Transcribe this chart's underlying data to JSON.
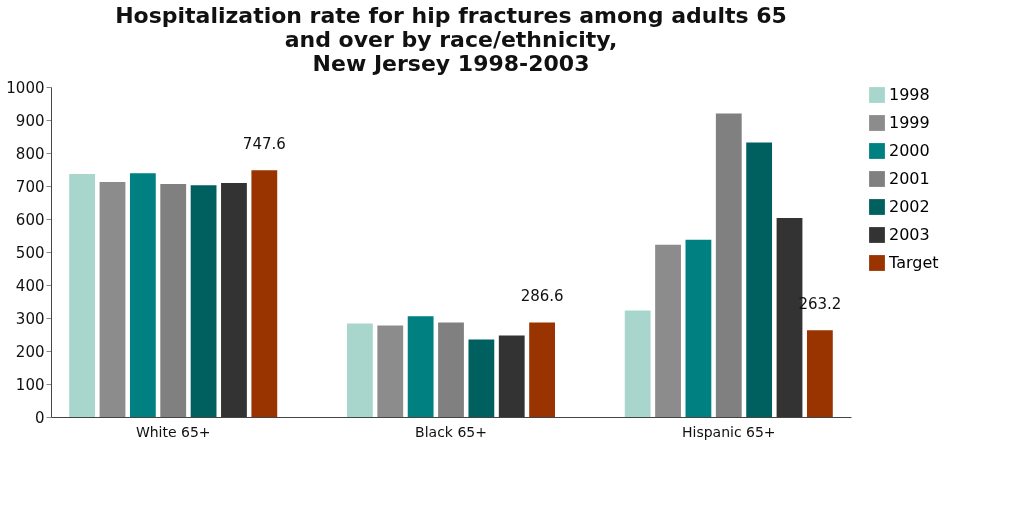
{
  "chart_data": {
    "type": "bar",
    "title": [
      "Hospitalization rate for hip fractures among adults 65",
      "and over by race/ethnicity,",
      "New Jersey 1998-2003"
    ],
    "categories": [
      "White 65+",
      "Black 65+",
      "Hispanic 65+"
    ],
    "series": [
      {
        "name": "1998",
        "color": "#a8d5cc",
        "values": [
          736,
          283,
          323
        ]
      },
      {
        "name": "1999",
        "color": "#8c8c8c",
        "values": [
          712,
          277,
          522
        ]
      },
      {
        "name": "2000",
        "color": "#008080",
        "values": [
          739,
          305,
          537
        ]
      },
      {
        "name": "2001",
        "color": "#808080",
        "values": [
          706,
          286,
          920
        ]
      },
      {
        "name": "2002",
        "color": "#005f5f",
        "values": [
          702,
          235,
          832
        ]
      },
      {
        "name": "2003",
        "color": "#333333",
        "values": [
          709,
          247,
          603
        ]
      },
      {
        "name": "Target",
        "color": "#993300",
        "values": [
          747.6,
          286.6,
          263.2
        ],
        "value_labels": [
          "747.6",
          "286.6",
          "263.2"
        ]
      }
    ],
    "ylim": [
      0,
      1000
    ],
    "yticks": [
      0,
      100,
      200,
      300,
      400,
      500,
      600,
      700,
      800,
      900,
      1000
    ],
    "grid": false,
    "legend": "right"
  }
}
